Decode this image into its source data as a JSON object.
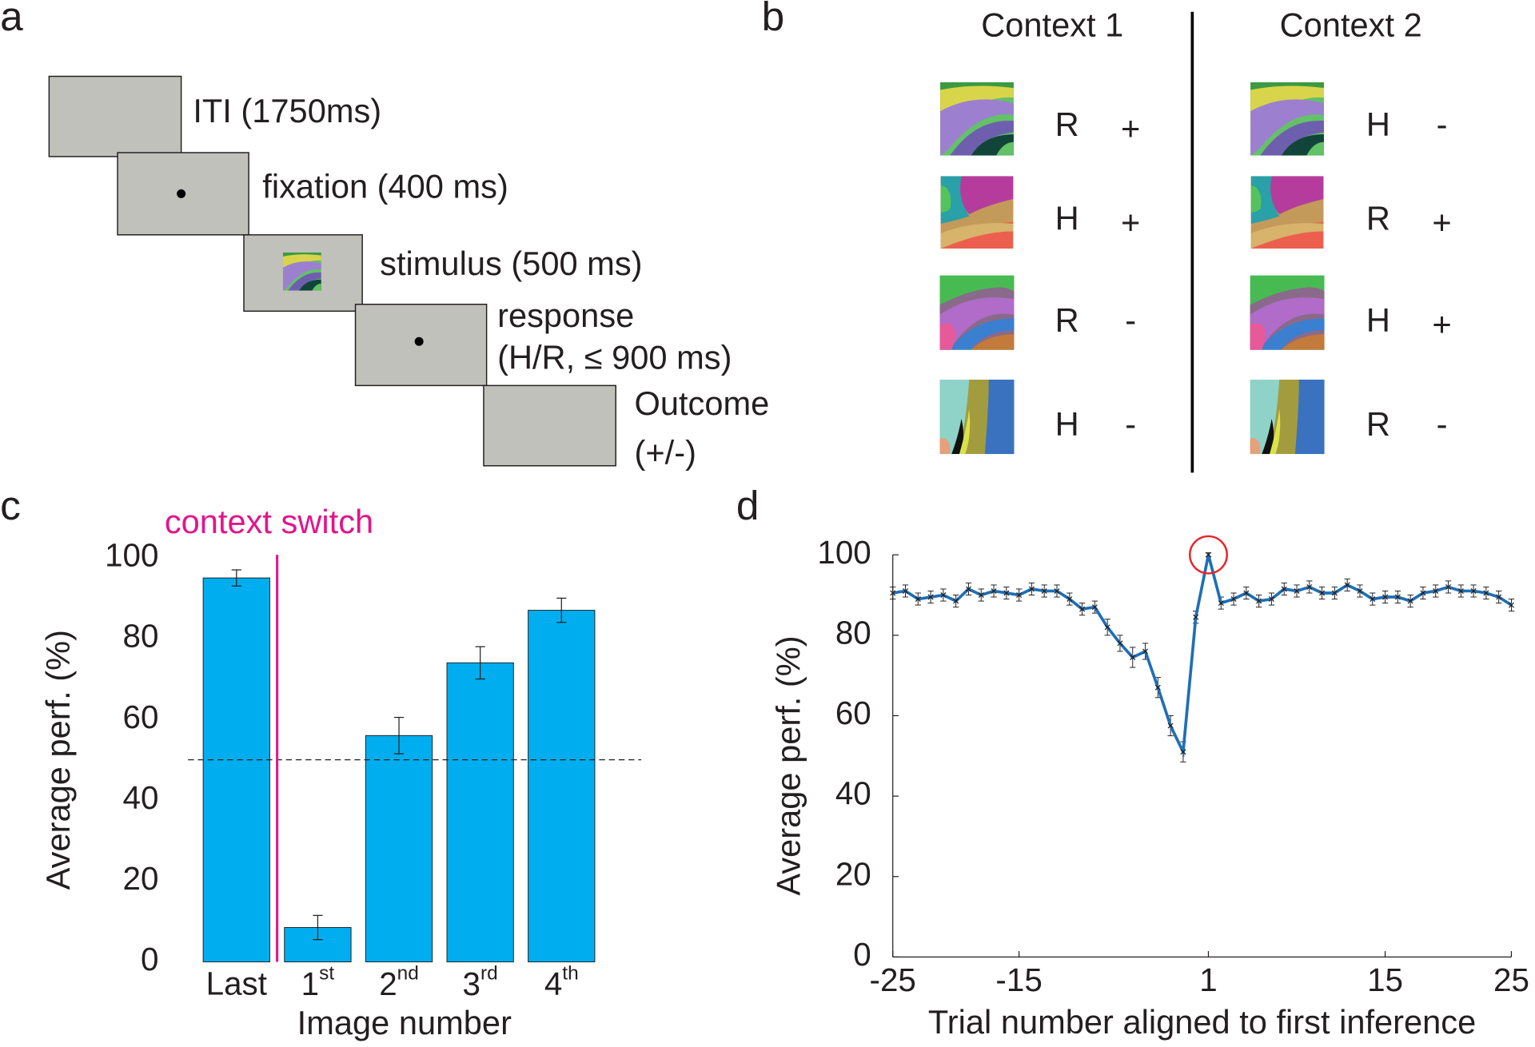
{
  "panel_a": {
    "letter": "a",
    "steps": [
      [
        "ITI (1750ms)"
      ],
      [
        "fixation (400 ms)"
      ],
      [
        "stimulus (500 ms)"
      ],
      [
        "response",
        "(H/R, ≤ 900 ms)"
      ],
      [
        "Outcome",
        "(+/-)"
      ]
    ]
  },
  "panel_b": {
    "letter": "b",
    "contexts": [
      {
        "title": "Context 1",
        "rows": [
          [
            "R",
            "+"
          ],
          [
            "H",
            "+"
          ],
          [
            "R",
            "-"
          ],
          [
            "H",
            "-"
          ]
        ]
      },
      {
        "title": "Context 2",
        "rows": [
          [
            "H",
            "-"
          ],
          [
            "R",
            "+"
          ],
          [
            "H",
            "+"
          ],
          [
            "R",
            "-"
          ]
        ]
      }
    ]
  },
  "chart_data": [
    {
      "type": "bar",
      "panel_letter": "c",
      "categories": [
        "Last",
        "1st",
        "2nd",
        "3rd",
        "4th"
      ],
      "values": [
        95,
        8.5,
        56,
        74,
        87
      ],
      "errors": [
        2,
        3,
        4.5,
        4,
        3
      ],
      "color": "#00aeef",
      "ylim": [
        0,
        100
      ],
      "yticks": [
        0,
        20,
        40,
        60,
        80,
        100
      ],
      "xlabel": "Image number",
      "ylabel": "Average perf. (%)",
      "reference_line": 50,
      "annotation": {
        "text": "context switch",
        "color": "#e0168c"
      }
    },
    {
      "type": "line",
      "panel_letter": "d",
      "x": [
        -25,
        -24,
        -23,
        -22,
        -21,
        -20,
        -19,
        -18,
        -17,
        -16,
        -15,
        -14,
        -13,
        -12,
        -11,
        -10,
        -9,
        -8,
        -7,
        -6,
        -5,
        -4,
        -3,
        -2,
        -1,
        1,
        2,
        3,
        4,
        5,
        6,
        7,
        8,
        9,
        10,
        11,
        12,
        13,
        14,
        15,
        16,
        17,
        18,
        19,
        20,
        21,
        22,
        23,
        24,
        25
      ],
      "values": [
        90.5,
        91,
        89,
        89.5,
        90,
        88.5,
        91.5,
        90,
        91,
        90.5,
        90,
        91.5,
        91,
        91,
        89,
        86.5,
        87,
        82,
        78,
        74.5,
        76,
        67,
        57.5,
        51,
        84.5,
        100,
        88,
        89,
        90.5,
        88.5,
        89,
        91.5,
        91,
        92,
        90.5,
        90.5,
        92.5,
        91,
        89,
        89.5,
        89.5,
        88.5,
        90.5,
        91,
        92,
        91,
        91,
        90.5,
        89.5,
        87.5
      ],
      "errors": [
        1.5,
        1.5,
        1.5,
        1.5,
        1.5,
        1.5,
        1.5,
        1.5,
        1.5,
        1.5,
        1.5,
        1.5,
        1.5,
        1.5,
        1.5,
        1.5,
        1.5,
        2,
        2,
        2.5,
        2,
        2.5,
        2.5,
        2.5,
        1.5,
        0.5,
        1.5,
        1.5,
        1.5,
        1.5,
        1.5,
        1.5,
        1.5,
        1.5,
        1.5,
        1.5,
        1.5,
        1.5,
        1.5,
        1.5,
        1.5,
        1.5,
        1.5,
        1.5,
        1.5,
        1.5,
        1.5,
        1.5,
        1.5,
        1.5
      ],
      "color": "#1f6fb5",
      "xlim": [
        -25,
        25
      ],
      "xticks": [
        -25,
        -15,
        1,
        15,
        25
      ],
      "x_skips_zero": true,
      "ylim": [
        0,
        100
      ],
      "yticks": [
        0,
        20,
        40,
        60,
        80,
        100
      ],
      "xlabel": "Trial number aligned to first inference",
      "ylabel": "Average perf. (%)",
      "highlight": {
        "x": 1,
        "color": "#e8262b"
      }
    }
  ]
}
